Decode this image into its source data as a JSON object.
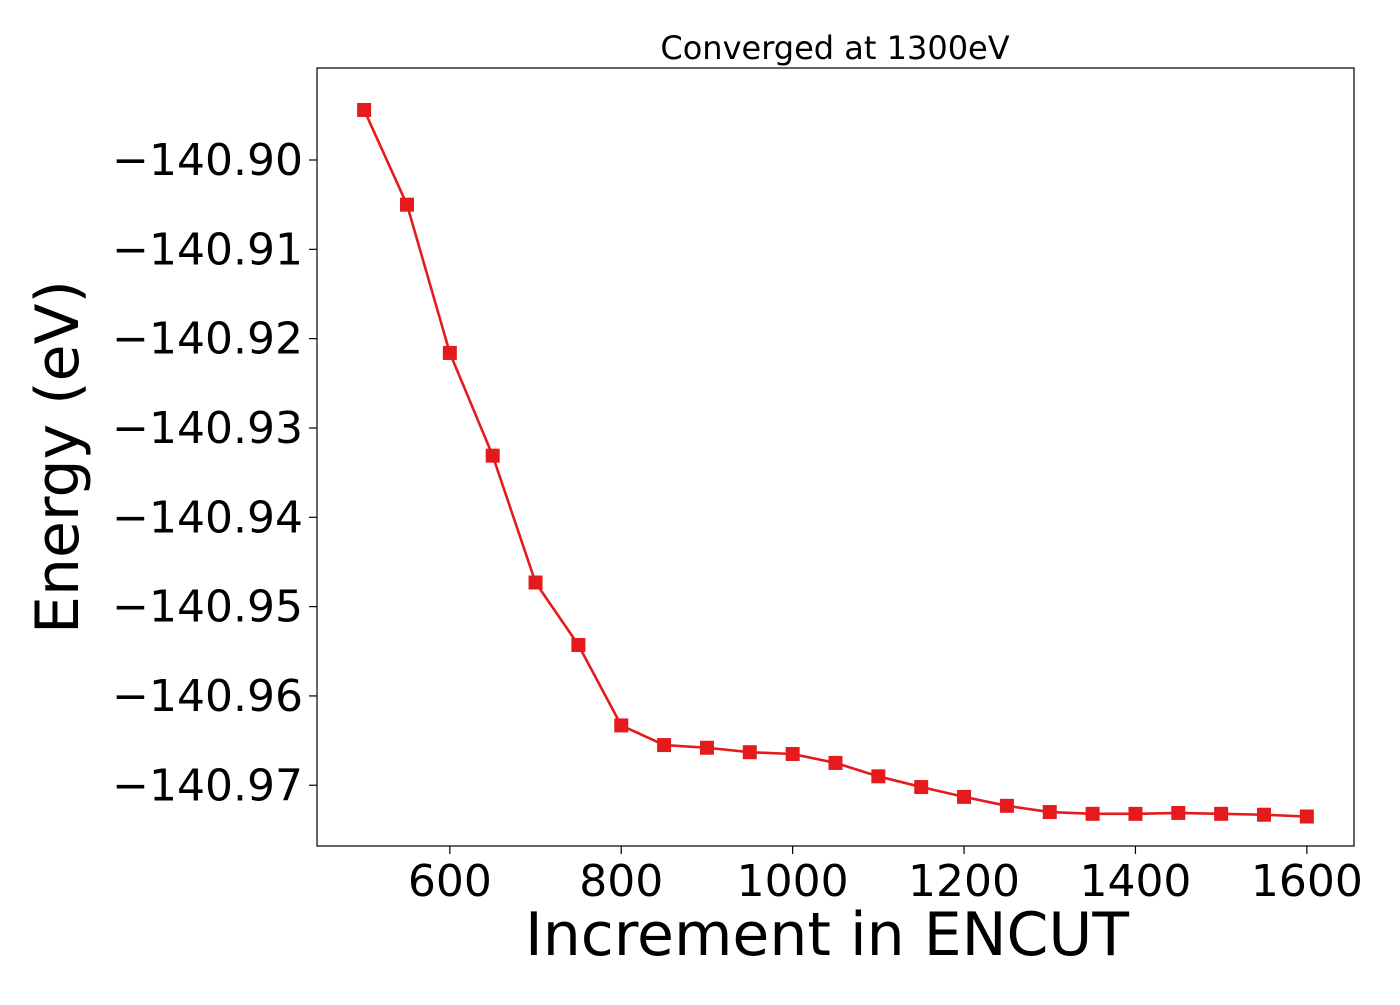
{
  "chart_data": {
    "type": "line",
    "title": "Converged at 1300eV",
    "xlabel": "Increment in ENCUT",
    "ylabel": "Energy (eV)",
    "xlim": [
      445,
      1655
    ],
    "ylim": [
      -140.9768,
      -140.8897
    ],
    "xticks": [
      600,
      800,
      1000,
      1200,
      1400,
      1600
    ],
    "yticks": [
      -140.9,
      -140.91,
      -140.92,
      -140.93,
      -140.94,
      -140.95,
      -140.96,
      -140.97
    ],
    "xtick_labels": [
      "600",
      "800",
      "1000",
      "1200",
      "1400",
      "1600"
    ],
    "ytick_labels": [
      "−140.90",
      "−140.91",
      "−140.92",
      "−140.93",
      "−140.94",
      "−140.95",
      "−140.96",
      "−140.97"
    ],
    "grid": false,
    "series": [
      {
        "color": "#e41a1c",
        "marker": "square",
        "x": [
          500,
          550,
          600,
          650,
          700,
          750,
          800,
          850,
          900,
          950,
          1000,
          1050,
          1100,
          1150,
          1200,
          1250,
          1300,
          1350,
          1400,
          1450,
          1500,
          1550,
          1600
        ],
        "y": [
          -140.8944,
          -140.905,
          -140.9216,
          -140.9331,
          -140.9473,
          -140.9543,
          -140.9633,
          -140.9655,
          -140.9658,
          -140.9663,
          -140.9665,
          -140.9675,
          -140.969,
          -140.9702,
          -140.9713,
          -140.9723,
          -140.973,
          -140.9732,
          -140.9732,
          -140.9731,
          -140.9732,
          -140.9733,
          -140.9735
        ]
      }
    ]
  }
}
